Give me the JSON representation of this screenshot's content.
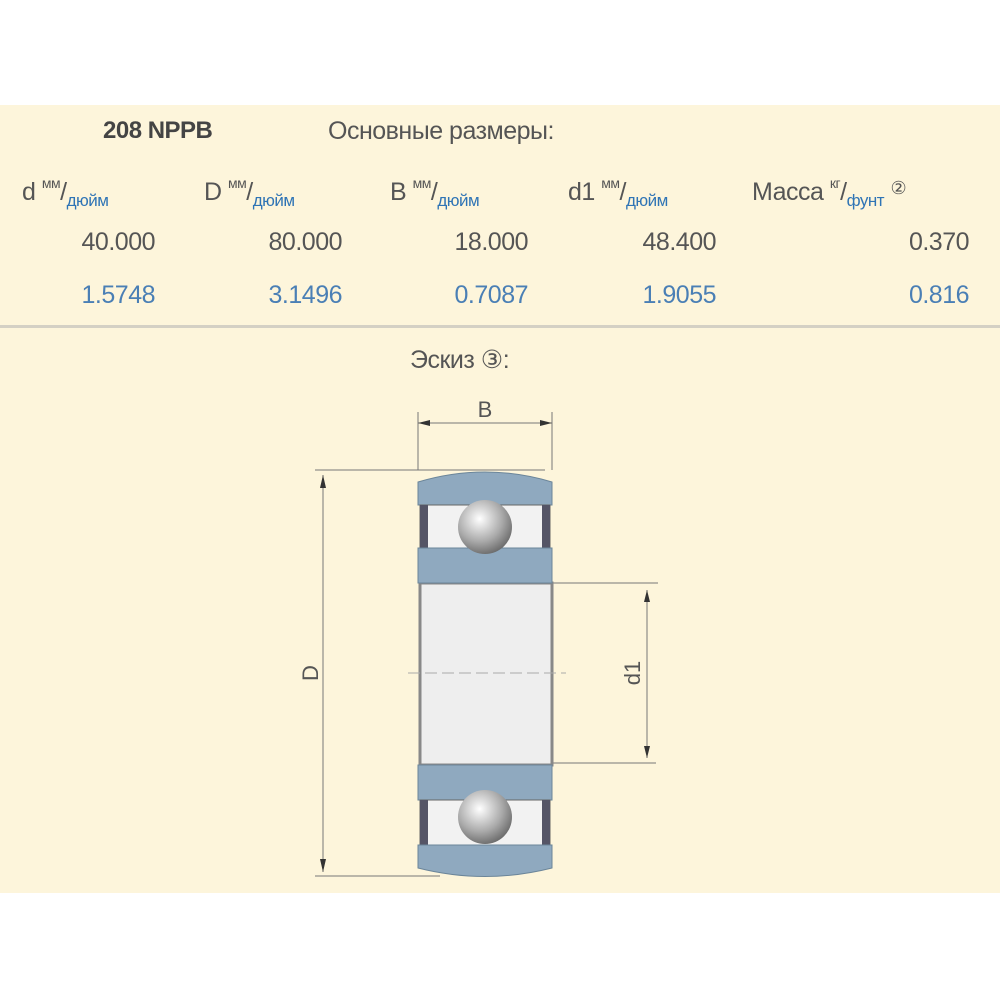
{
  "header": {
    "model": "208 NPPB",
    "subtitle": "Основные размеры:"
  },
  "columns": [
    {
      "symbol": "d",
      "unit_top": "мм",
      "unit_bottom": "дюйм",
      "mm": "40.000",
      "inch": "1.5748"
    },
    {
      "symbol": "D",
      "unit_top": "мм",
      "unit_bottom": "дюйм",
      "mm": "80.000",
      "inch": "3.1496"
    },
    {
      "symbol": "B",
      "unit_top": "мм",
      "unit_bottom": "дюйм",
      "mm": "18.000",
      "inch": "0.7087"
    },
    {
      "symbol": "d1",
      "unit_top": "мм",
      "unit_bottom": "дюйм",
      "mm": "48.400",
      "inch": "1.9055"
    },
    {
      "symbol": "Масса",
      "unit_top": "кг",
      "unit_bottom": "фунт",
      "note": "②",
      "mm": "0.370",
      "inch": "0.816"
    }
  ],
  "sketch": {
    "label": "Эскиз ③:",
    "dim_B": "B",
    "dim_D": "D",
    "dim_d1": "d1"
  },
  "colors": {
    "background": "#fdf5db",
    "ring": "#8fa9bf",
    "inch_text": "#4a7fb5"
  }
}
